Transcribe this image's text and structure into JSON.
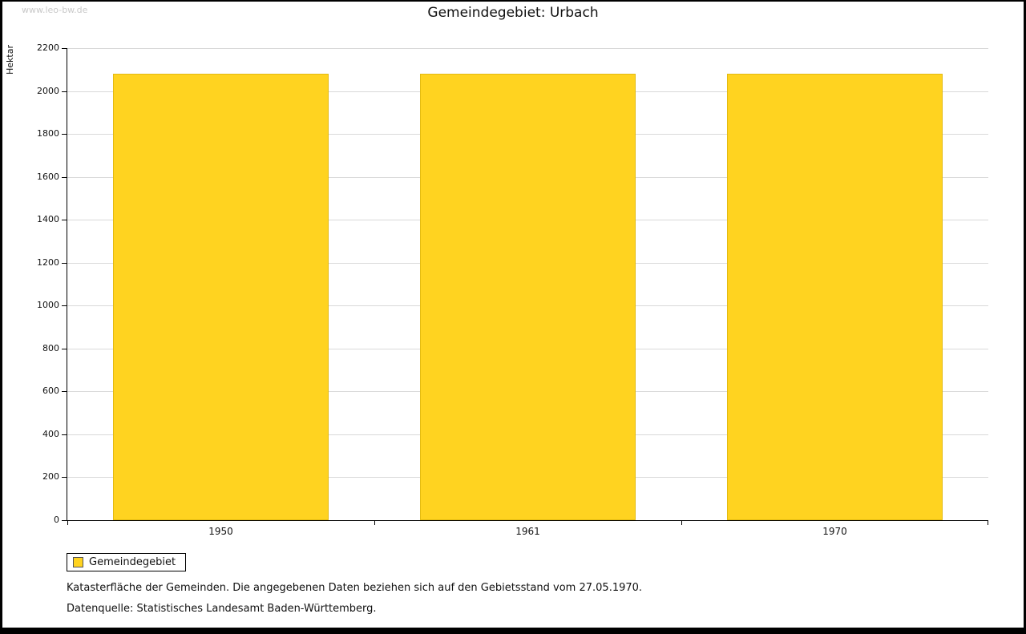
{
  "watermark": "www.leo-bw.de",
  "chart_data": {
    "type": "bar",
    "title": "Gemeindegebiet: Urbach",
    "ylabel": "Hektar",
    "categories": [
      "1950",
      "1961",
      "1970"
    ],
    "series": [
      {
        "name": "Gemeindegebiet",
        "values": [
          2080,
          2080,
          2080
        ]
      }
    ],
    "ylim": [
      0,
      2200
    ],
    "ytick_step": 200,
    "grid": true,
    "legend_position": "bottom-left",
    "bar_color": "#ffd320",
    "gridline_color": "#d9d9d9"
  },
  "footnotes": {
    "line1": "Katasterfläche der Gemeinden. Die angegebenen Daten beziehen sich auf den Gebietsstand vom 27.05.1970.",
    "line2": "Datenquelle: Statistisches Landesamt Baden-Württemberg."
  }
}
